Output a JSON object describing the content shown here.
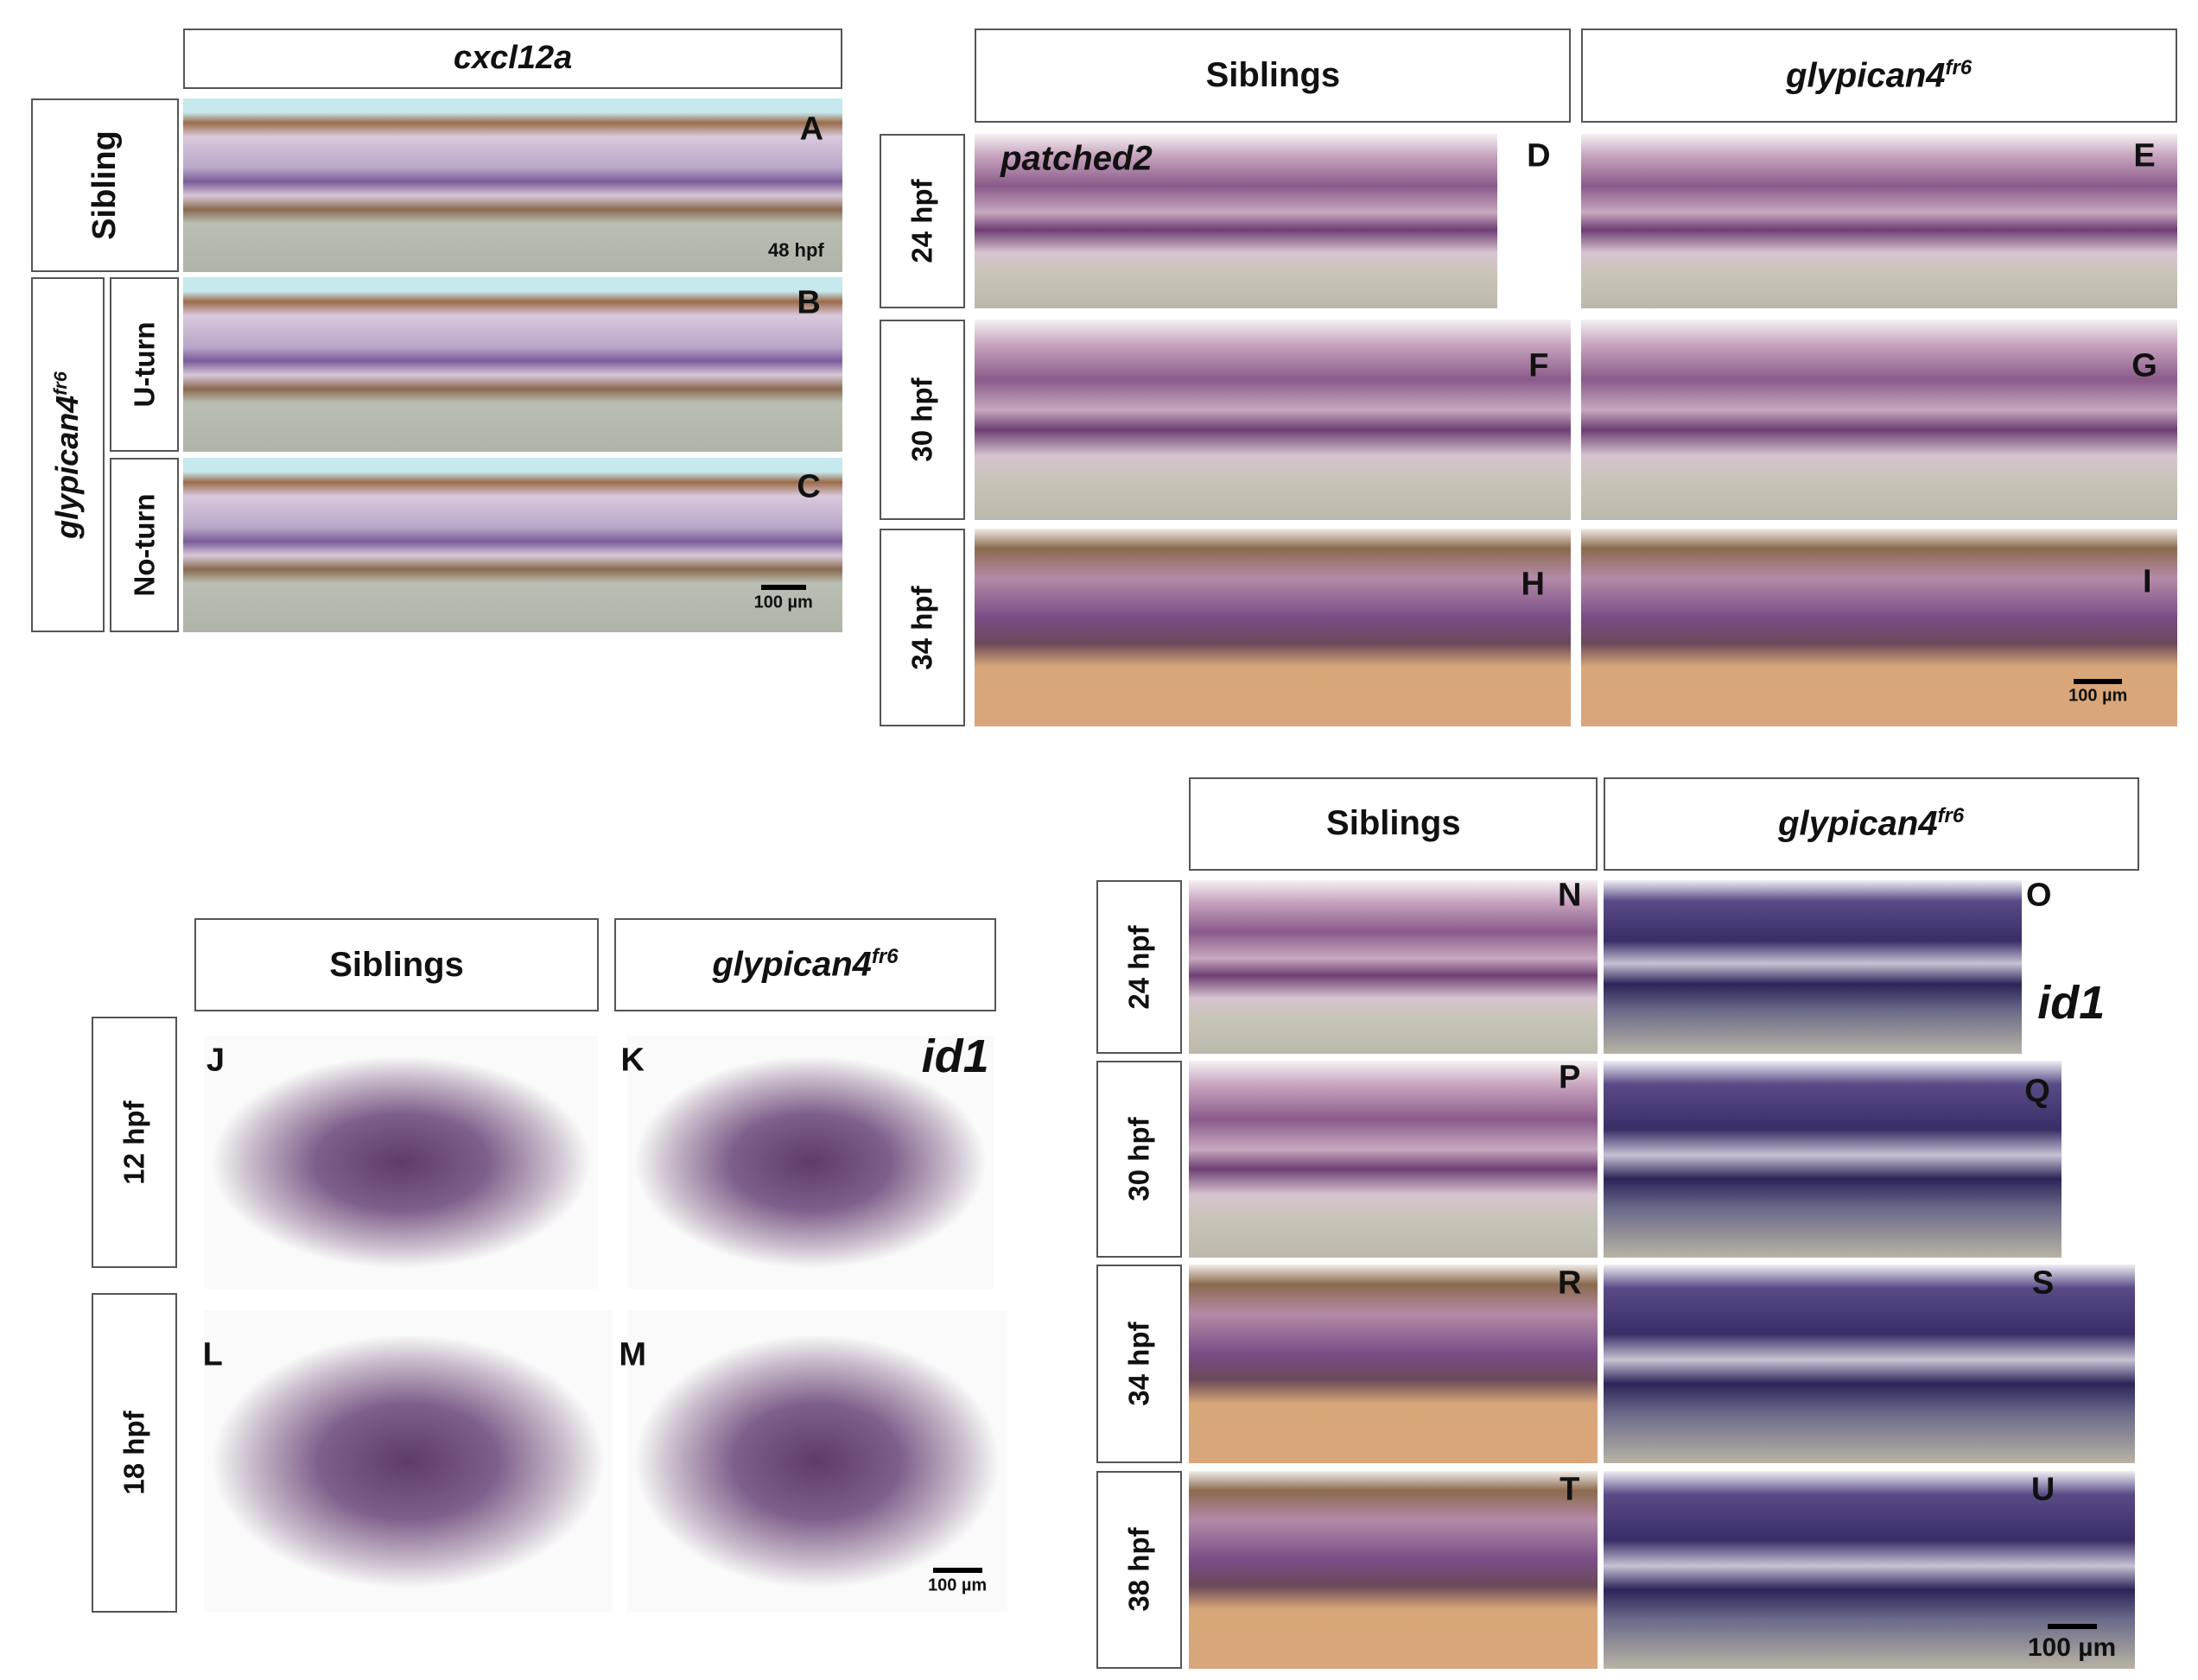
{
  "cxcl12a_figure": {
    "gene": "cxcl12a",
    "row_labels": [
      "Sibling",
      {
        "base": "glypican4",
        "sup": "fr6"
      }
    ],
    "sub_labels": [
      "U-turn",
      "No-turn"
    ],
    "panels": [
      "A",
      "B",
      "C"
    ],
    "stage": "48 hpf",
    "scale_bar": "100 µm"
  },
  "patched2_figure": {
    "gene": "patched2",
    "columns": [
      "Siblings",
      {
        "base": "glypican4",
        "sup": "fr6"
      }
    ],
    "row_labels": [
      "24 hpf",
      "30 hpf",
      "34 hpf"
    ],
    "panels": [
      "D",
      "E",
      "F",
      "G",
      "H",
      "I"
    ],
    "scale_bar": "100 µm"
  },
  "id1_early_figure": {
    "gene": "id1",
    "columns": [
      "Siblings",
      {
        "base": "glypican4",
        "sup": "fr6"
      }
    ],
    "row_labels": [
      "12 hpf",
      "18 hpf"
    ],
    "panels": [
      "J",
      "K",
      "L",
      "M"
    ],
    "scale_bar": "100 µm"
  },
  "id1_late_figure": {
    "gene": "id1",
    "columns": [
      "Siblings",
      {
        "base": "glypican4",
        "sup": "fr6"
      }
    ],
    "row_labels": [
      "24 hpf",
      "30 hpf",
      "34 hpf",
      "38 hpf"
    ],
    "panels": [
      "N",
      "O",
      "P",
      "Q",
      "R",
      "S",
      "T",
      "U"
    ],
    "scale_bar": "100 µm"
  }
}
